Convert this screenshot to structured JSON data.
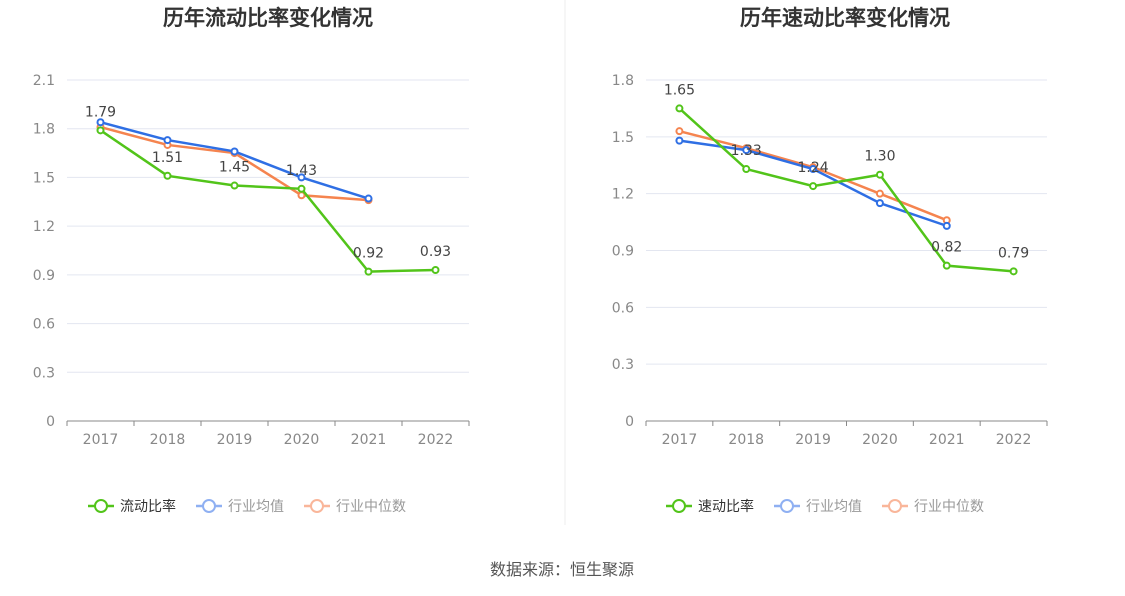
{
  "source": "数据来源：恒生聚源",
  "colors": {
    "company": "#52c41a",
    "industry_avg": "#2f6fe4",
    "industry_median": "#f5844f"
  },
  "chart_data": [
    {
      "type": "line",
      "title": "历年流动比率变化情况",
      "categories": [
        "2017",
        "2018",
        "2019",
        "2020",
        "2021",
        "2022"
      ],
      "ylim": [
        0,
        2.1
      ],
      "yticks": [
        "0",
        "0.3",
        "0.6",
        "0.9",
        "1.2",
        "1.5",
        "1.8",
        "2.1"
      ],
      "grid": true,
      "legend_position": "bottom",
      "series": [
        {
          "name": "流动比率",
          "values": [
            1.79,
            1.51,
            1.45,
            1.43,
            0.92,
            0.93
          ],
          "labels": [
            "1.79",
            "1.51",
            "1.45",
            "1.43",
            "0.92",
            "0.93"
          ]
        },
        {
          "name": "行业均值",
          "values": [
            1.84,
            1.73,
            1.66,
            1.5,
            1.37,
            null
          ]
        },
        {
          "name": "行业中位数",
          "values": [
            1.81,
            1.7,
            1.65,
            1.39,
            1.36,
            null
          ]
        }
      ]
    },
    {
      "type": "line",
      "title": "历年速动比率变化情况",
      "categories": [
        "2017",
        "2018",
        "2019",
        "2020",
        "2021",
        "2022"
      ],
      "ylim": [
        0,
        1.8
      ],
      "yticks": [
        "0",
        "0.3",
        "0.6",
        "0.9",
        "1.2",
        "1.5",
        "1.8"
      ],
      "grid": true,
      "legend_position": "bottom",
      "series": [
        {
          "name": "速动比率",
          "values": [
            1.65,
            1.33,
            1.24,
            1.3,
            0.82,
            0.79
          ],
          "labels": [
            "1.65",
            "1.33",
            "1.24",
            "1.30",
            "0.82",
            "0.79"
          ]
        },
        {
          "name": "行业均值",
          "values": [
            1.48,
            1.43,
            1.33,
            1.15,
            1.03,
            null
          ]
        },
        {
          "name": "行业中位数",
          "values": [
            1.53,
            1.44,
            1.34,
            1.2,
            1.06,
            null
          ]
        }
      ]
    }
  ]
}
